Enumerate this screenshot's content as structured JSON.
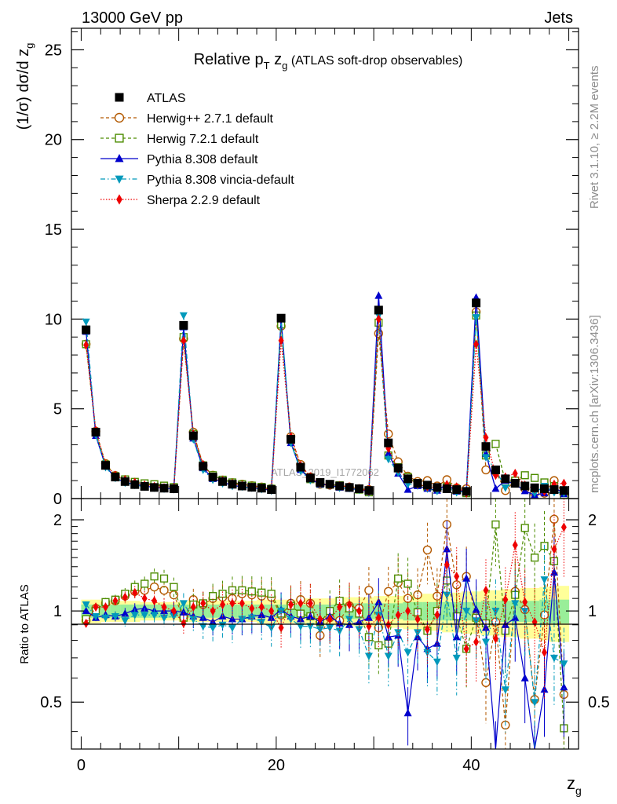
{
  "header": {
    "energy_label": "13000 GeV pp",
    "process_label": "Jets"
  },
  "side_labels": {
    "rivet_version": "Rivet 3.1.10, ≥ 2.2M events",
    "source": "mcplots.cern.ch [arXiv:1306.3436]"
  },
  "watermark": "ATLAS_2019_I1772062",
  "chart_data": [
    {
      "type": "scatter",
      "panel": "main",
      "title_main": "Relative p",
      "title_sub_T": "T",
      "title_mid": " z",
      "title_sub_g": "g",
      "title_rest": " (ATLAS soft-drop observables)",
      "ylabel": "(1/σ) dσ/d z",
      "ylabel_sub": "g",
      "xlabel": "z",
      "xlabel_sub": "g",
      "xlim": [
        -1,
        51
      ],
      "ylim": [
        0,
        26.2
      ],
      "x_ticks": [
        0,
        20,
        40
      ],
      "y_ticks": [
        0,
        5,
        10,
        15,
        20,
        25
      ],
      "x": [
        0.5,
        1.5,
        2.5,
        3.5,
        4.5,
        5.5,
        6.5,
        7.5,
        8.5,
        9.5,
        10.5,
        11.5,
        12.5,
        13.5,
        14.5,
        15.5,
        16.5,
        17.5,
        18.5,
        19.5,
        20.5,
        21.5,
        22.5,
        23.5,
        24.5,
        25.5,
        26.5,
        27.5,
        28.5,
        29.5,
        30.5,
        31.5,
        32.5,
        33.5,
        34.5,
        35.5,
        36.5,
        37.5,
        38.5,
        39.5,
        40.5,
        41.5,
        42.5,
        43.5,
        44.5,
        45.5,
        46.5,
        47.5,
        48.5,
        49.5
      ],
      "series": [
        {
          "name": "ATLAS",
          "color": "#000000",
          "marker": "square-filled",
          "line": "none",
          "values": [
            9.4,
            3.7,
            1.85,
            1.2,
            0.95,
            0.78,
            0.68,
            0.62,
            0.58,
            0.55,
            9.65,
            3.5,
            1.8,
            1.2,
            0.95,
            0.8,
            0.7,
            0.63,
            0.58,
            0.5,
            10.05,
            3.3,
            1.75,
            1.15,
            0.9,
            0.8,
            0.7,
            0.62,
            0.55,
            0.45,
            10.5,
            3.1,
            1.7,
            1.1,
            0.85,
            0.75,
            0.62,
            0.55,
            0.5,
            0.4,
            10.9,
            2.9,
            1.6,
            1.1,
            0.85,
            0.7,
            0.6,
            0.55,
            0.5,
            0.45
          ]
        },
        {
          "name": "Herwig++ 2.7.1 default",
          "color": "#b35900",
          "marker": "circle-open",
          "line": "dashed",
          "values": [
            8.6,
            3.75,
            1.95,
            1.28,
            1.05,
            0.9,
            0.8,
            0.74,
            0.68,
            0.62,
            8.9,
            3.7,
            1.85,
            1.3,
            1.03,
            0.88,
            0.8,
            0.72,
            0.64,
            0.56,
            9.6,
            3.45,
            1.9,
            1.2,
            0.8,
            0.75,
            0.72,
            0.64,
            0.55,
            0.5,
            9.2,
            3.6,
            2.05,
            1.25,
            0.95,
            1.0,
            0.7,
            1.05,
            0.6,
            0.55,
            10.4,
            1.6,
            1.5,
            0.45,
            1.0,
            0.55,
            0.3,
            0.3,
            1.0,
            0.25
          ]
        },
        {
          "name": "Herwig 7.2.1 default",
          "color": "#4c8c00",
          "marker": "square-open",
          "line": "dashed",
          "values": [
            8.6,
            3.7,
            1.9,
            1.25,
            1.07,
            0.93,
            0.85,
            0.8,
            0.72,
            0.64,
            9.0,
            3.6,
            1.85,
            1.3,
            1.05,
            0.9,
            0.8,
            0.72,
            0.65,
            0.55,
            9.7,
            3.3,
            1.7,
            1.08,
            0.82,
            0.78,
            0.74,
            0.62,
            0.5,
            0.35,
            9.8,
            2.4,
            1.75,
            1.2,
            0.8,
            0.65,
            0.6,
            0.65,
            0.45,
            0.3,
            10.2,
            2.4,
            3.05,
            0.95,
            1.0,
            1.3,
            1.15,
            0.9,
            0.7,
            0.2
          ]
        },
        {
          "name": "Pythia 8.308 default",
          "color": "#0000cc",
          "marker": "triangle-up",
          "line": "solid",
          "values": [
            9.3,
            3.5,
            1.8,
            1.15,
            0.9,
            0.8,
            0.7,
            0.62,
            0.58,
            0.55,
            9.55,
            3.35,
            1.7,
            1.1,
            0.9,
            0.74,
            0.65,
            0.6,
            0.55,
            0.45,
            10.0,
            3.1,
            1.6,
            1.08,
            0.8,
            0.75,
            0.62,
            0.55,
            0.5,
            0.4,
            11.3,
            2.5,
            1.4,
            0.5,
            0.7,
            0.55,
            0.45,
            0.8,
            0.4,
            0.45,
            11.2,
            2.5,
            0.55,
            1.0,
            0.8,
            0.42,
            0.2,
            0.3,
            0.65,
            0.25
          ]
        },
        {
          "name": "Pythia 8.308 vincia-default",
          "color": "#0099bb",
          "marker": "triangle-down",
          "line": "dashdot",
          "values": [
            9.85,
            3.55,
            1.75,
            1.15,
            0.88,
            0.76,
            0.66,
            0.6,
            0.55,
            0.52,
            10.2,
            3.3,
            1.6,
            1.05,
            0.85,
            0.7,
            0.66,
            0.6,
            0.53,
            0.44,
            10.1,
            3.1,
            1.55,
            1.02,
            0.78,
            0.7,
            0.6,
            0.58,
            0.48,
            0.32,
            10.2,
            2.2,
            1.45,
            0.8,
            0.72,
            0.55,
            0.42,
            0.62,
            0.35,
            0.4,
            10.1,
            2.3,
            1.6,
            0.6,
            0.9,
            0.7,
            0.3,
            0.7,
            0.35,
            0.3
          ]
        },
        {
          "name": "Sherpa 2.2.9 default",
          "color": "#ee0000",
          "marker": "diamond",
          "line": "dotted",
          "values": [
            8.55,
            3.8,
            1.9,
            1.3,
            1.05,
            0.9,
            0.75,
            0.67,
            0.6,
            0.55,
            8.8,
            3.6,
            1.9,
            1.2,
            1.0,
            0.85,
            0.74,
            0.64,
            0.6,
            0.5,
            8.8,
            3.45,
            1.85,
            1.22,
            0.85,
            0.75,
            0.72,
            0.65,
            0.55,
            0.4,
            10.0,
            2.8,
            1.65,
            1.1,
            0.8,
            0.65,
            0.6,
            0.78,
            0.65,
            0.3,
            8.6,
            3.4,
            1.3,
            1.2,
            1.4,
            0.75,
            0.55,
            0.4,
            0.8,
            0.85
          ]
        }
      ],
      "legend": [
        "ATLAS",
        "Herwig++ 2.7.1 default",
        "Herwig 7.2.1 default",
        "Pythia 8.308 default",
        "Pythia 8.308 vincia-default",
        "Sherpa 2.2.9 default"
      ]
    },
    {
      "type": "scatter",
      "panel": "ratio",
      "ylabel": "Ratio to ATLAS",
      "xlim": [
        -1,
        51
      ],
      "ylim": [
        0.35,
        2.35
      ],
      "y_ticks": [
        0.5,
        1,
        2
      ],
      "y_tick_labels": [
        "0.5",
        "1",
        "2"
      ],
      "band_stat_half_width": [
        0.05,
        0.05,
        0.05,
        0.05,
        0.05,
        0.05,
        0.05,
        0.05,
        0.05,
        0.05,
        0.05,
        0.05,
        0.05,
        0.05,
        0.05,
        0.05,
        0.05,
        0.05,
        0.05,
        0.05,
        0.05,
        0.05,
        0.05,
        0.05,
        0.05,
        0.05,
        0.06,
        0.06,
        0.06,
        0.06,
        0.06,
        0.06,
        0.06,
        0.07,
        0.07,
        0.07,
        0.07,
        0.07,
        0.07,
        0.07,
        0.07,
        0.08,
        0.08,
        0.08,
        0.08,
        0.08,
        0.08,
        0.09,
        0.09,
        0.09
      ],
      "band_total_half_width": [
        0.09,
        0.09,
        0.08,
        0.08,
        0.08,
        0.08,
        0.07,
        0.07,
        0.07,
        0.07,
        0.08,
        0.08,
        0.08,
        0.08,
        0.08,
        0.08,
        0.08,
        0.08,
        0.09,
        0.09,
        0.09,
        0.09,
        0.1,
        0.1,
        0.1,
        0.1,
        0.11,
        0.11,
        0.11,
        0.11,
        0.12,
        0.12,
        0.12,
        0.13,
        0.13,
        0.14,
        0.14,
        0.15,
        0.15,
        0.16,
        0.16,
        0.17,
        0.17,
        0.18,
        0.18,
        0.19,
        0.19,
        0.2,
        0.21,
        0.21
      ],
      "series": [
        {
          "name": "Herwig++ 2.7.1 default",
          "color": "#b35900",
          "values": [
            0.93,
            1.02,
            1.06,
            1.08,
            1.12,
            1.16,
            1.17,
            1.2,
            1.17,
            1.13,
            0.95,
            1.09,
            1.05,
            1.1,
            1.11,
            1.1,
            1.14,
            1.13,
            1.12,
            1.11,
            0.97,
            1.06,
            1.09,
            1.06,
            0.83,
            0.95,
            0.93,
            1.04,
            1.02,
            1.17,
            0.88,
            1.16,
            1.24,
            1.1,
            1.13,
            1.59,
            1.12,
            1.93,
            1.22,
            1.3,
            0.96,
            0.58,
            0.92,
            0.42,
            1.16,
            1.01,
            0.51,
            0.97,
            2.01,
            0.53
          ]
        },
        {
          "name": "Herwig 7.2.1 default",
          "color": "#4c8c00",
          "values": [
            0.94,
            1.0,
            1.07,
            1.09,
            1.14,
            1.2,
            1.23,
            1.3,
            1.28,
            1.2,
            0.95,
            1.05,
            1.06,
            1.12,
            1.14,
            1.17,
            1.17,
            1.16,
            1.15,
            1.14,
            0.98,
            1.04,
            0.98,
            0.96,
            0.92,
            1.0,
            1.08,
            1.02,
            0.98,
            0.82,
            0.77,
            0.78,
            1.28,
            1.23,
            0.99,
            0.86,
            1.0,
            1.26,
            0.96,
            0.75,
            0.95,
            0.91,
            1.93,
            0.86,
            1.13,
            1.88,
            1.5,
            1.64,
            1.46,
            0.41
          ]
        },
        {
          "name": "Pythia 8.308 default",
          "color": "#0000cc",
          "values": [
            1.0,
            0.95,
            0.97,
            0.96,
            0.98,
            1.01,
            1.02,
            1.0,
            1.0,
            1.0,
            0.99,
            0.96,
            0.95,
            0.92,
            0.96,
            0.94,
            0.94,
            0.96,
            0.97,
            0.95,
            1.01,
            0.96,
            0.94,
            0.96,
            0.92,
            0.96,
            0.91,
            0.9,
            0.92,
            0.95,
            1.07,
            0.82,
            0.83,
            0.46,
            0.82,
            0.75,
            0.78,
            1.6,
            0.82,
            1.28,
            1.01,
            0.88,
            0.34,
            0.9,
            0.95,
            0.6,
            0.33,
            0.55,
            1.34,
            0.56
          ]
        },
        {
          "name": "Pythia 8.308 vincia-default",
          "color": "#0099bb",
          "values": [
            1.05,
            0.96,
            0.95,
            0.96,
            0.93,
            0.97,
            0.97,
            0.97,
            0.95,
            0.96,
            1.06,
            0.94,
            0.89,
            0.88,
            0.9,
            0.88,
            0.94,
            0.95,
            0.92,
            0.88,
            1.0,
            0.94,
            0.89,
            0.89,
            0.87,
            0.88,
            0.86,
            0.94,
            0.87,
            0.71,
            0.97,
            0.71,
            0.85,
            0.73,
            0.85,
            0.73,
            0.68,
            1.13,
            0.7,
            1.0,
            0.93,
            0.79,
            1.0,
            0.55,
            1.06,
            1.0,
            0.5,
            1.27,
            0.7,
            0.67
          ]
        },
        {
          "name": "Sherpa 2.2.9 default",
          "color": "#ee0000",
          "values": [
            0.91,
            1.03,
            1.03,
            1.08,
            1.11,
            1.15,
            1.1,
            1.08,
            1.03,
            1.0,
            0.91,
            1.03,
            1.06,
            1.0,
            1.05,
            1.06,
            1.06,
            1.02,
            1.03,
            1.0,
            0.88,
            1.05,
            1.06,
            1.06,
            0.94,
            0.94,
            1.03,
            1.05,
            1.0,
            0.89,
            0.95,
            0.9,
            0.97,
            1.0,
            0.94,
            0.87,
            0.97,
            1.42,
            1.3,
            0.75,
            0.79,
            1.17,
            0.81,
            1.09,
            1.65,
            1.07,
            0.92,
            0.73,
            1.6,
            1.89
          ]
        }
      ]
    }
  ]
}
